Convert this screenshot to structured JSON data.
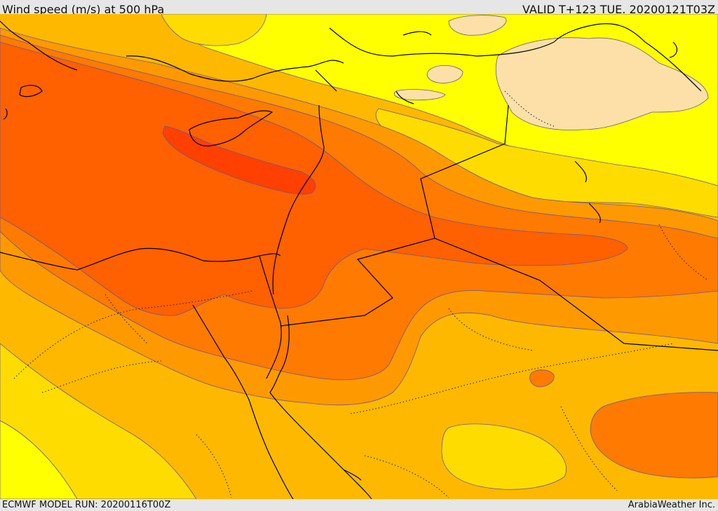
{
  "header": {
    "title": "Wind speed (m/s) at 500 hPa",
    "valid_time": "VALID T+123 TUE. 20200121T03Z"
  },
  "footer": {
    "model_run": "ECMWF MODEL RUN: 20200116T00Z",
    "credit": "ArabiaWeather Inc."
  },
  "map": {
    "variable": "wind speed at 500 hPa",
    "colors": {
      "band_1": "#fde0a8",
      "band_2": "#ffff00",
      "band_3": "#ffdc00",
      "band_4": "#ffb800",
      "band_5": "#ff9900",
      "band_6": "#ff7a00",
      "band_7": "#ff6000",
      "band_8": "#ff4000",
      "coastline": "#000000",
      "contour": "#6a5a8a"
    }
  }
}
